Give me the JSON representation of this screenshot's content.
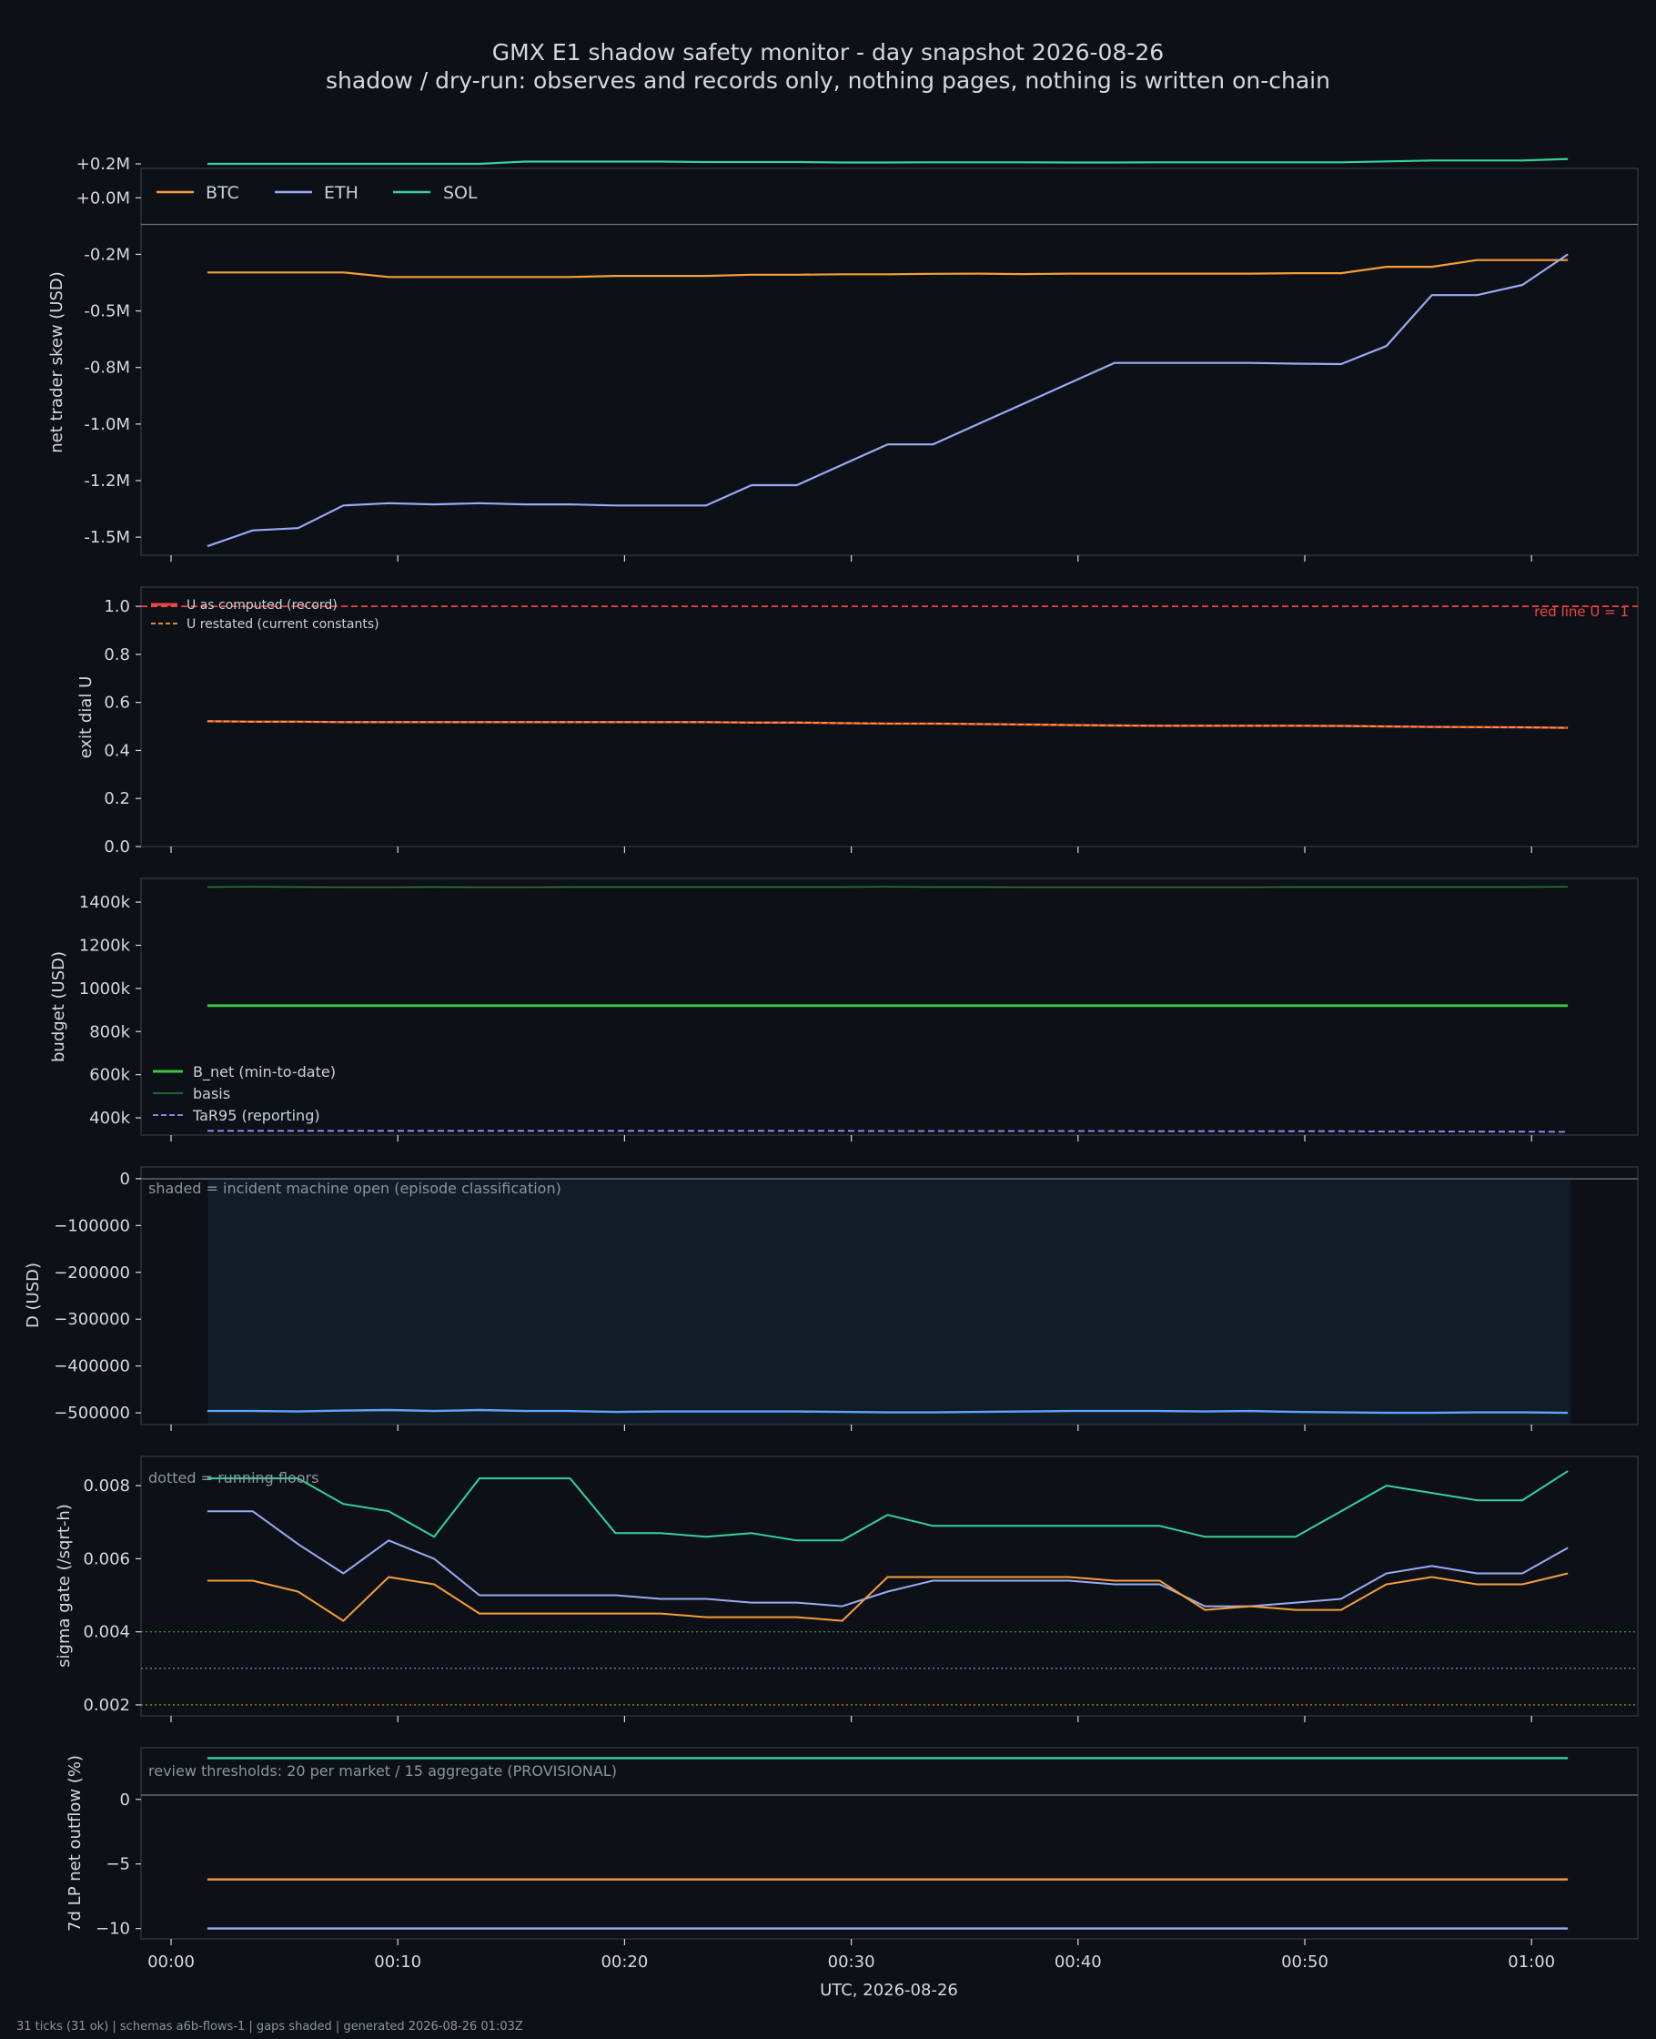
{
  "title": "GMX E1 shadow safety monitor - day snapshot 2026-08-26",
  "subtitle": "shadow / dry-run: observes and records only, nothing pages, nothing is written on-chain",
  "xlabel": "UTC, 2026-08-26",
  "x_tick_labels": [
    "00:00",
    "00:10",
    "00:20",
    "00:30",
    "00:40",
    "00:50",
    "01:00"
  ],
  "footer": "31 ticks (31 ok) | schemas a6b-flows-1 | gaps shaded | generated 2026-08-26 01:03Z",
  "colors": {
    "btc": "#f59e3b",
    "eth": "#9aaaf5",
    "sol": "#34d399",
    "red": "#ef4444",
    "green": "#3ec43e",
    "basis": "#2f7d3a",
    "tar": "#a78bfa",
    "d": "#60a5fa",
    "shade": "#111c26"
  },
  "chart_data": [
    {
      "type": "line",
      "ylabel": "net trader skew (USD)",
      "ytick_labels": [
        "+0.2M",
        "+0.0M",
        "-0.2M",
        "-0.5M",
        "-0.8M",
        "-1.0M",
        "-1.2M",
        "-1.5M"
      ],
      "ylim": [
        -1.58,
        0.13
      ],
      "legend": "top-left",
      "x_minutes": [
        1.6,
        3.6,
        5.6,
        7.6,
        9.6,
        11.6,
        13.6,
        15.6,
        17.6,
        19.6,
        21.6,
        23.6,
        25.6,
        27.6,
        29.6,
        31.6,
        33.6,
        35.6,
        37.6,
        39.6,
        41.6,
        43.6,
        45.6,
        47.6,
        49.6,
        51.6,
        53.6,
        55.6,
        57.6,
        59.6,
        61.6
      ],
      "series": [
        {
          "name": "BTC",
          "color": "#f59e3b",
          "values": [
            -0.33,
            -0.33,
            -0.33,
            -0.33,
            -0.35,
            -0.35,
            -0.35,
            -0.35,
            -0.35,
            -0.345,
            -0.345,
            -0.345,
            -0.34,
            -0.34,
            -0.338,
            -0.338,
            -0.336,
            -0.335,
            -0.337,
            -0.335,
            -0.335,
            -0.335,
            -0.335,
            -0.335,
            -0.333,
            -0.333,
            -0.305,
            -0.305,
            -0.275,
            -0.275,
            -0.275
          ]
        },
        {
          "name": "ETH",
          "color": "#9aaaf5",
          "values": [
            -1.54,
            -1.47,
            -1.46,
            -1.36,
            -1.35,
            -1.355,
            -1.35,
            -1.355,
            -1.355,
            -1.36,
            -1.36,
            -1.36,
            -1.27,
            -1.27,
            -1.18,
            -1.09,
            -1.09,
            -1.0,
            -0.91,
            -0.82,
            -0.73,
            -0.73,
            -0.73,
            -0.73,
            -0.733,
            -0.735,
            -0.655,
            -0.43,
            -0.43,
            -0.385,
            -0.25
          ]
        },
        {
          "name": "SOL",
          "color": "#34d399",
          "values": [
            0.15,
            0.15,
            0.15,
            0.15,
            0.15,
            0.15,
            0.15,
            0.16,
            0.16,
            0.16,
            0.16,
            0.158,
            0.158,
            0.158,
            0.156,
            0.156,
            0.157,
            0.157,
            0.157,
            0.156,
            0.156,
            0.157,
            0.157,
            0.157,
            0.157,
            0.157,
            0.161,
            0.165,
            0.165,
            0.165,
            0.172
          ]
        }
      ]
    },
    {
      "type": "line",
      "ylabel": "exit dial U",
      "ytick_labels": [
        "1.0",
        "0.8",
        "0.6",
        "0.4",
        "0.2",
        "0.0"
      ],
      "ylim": [
        0,
        1.08
      ],
      "legend": "top-left",
      "annotation": "red line U = 1",
      "series": [
        {
          "name": "U as computed (record)",
          "color": "#ef4444",
          "values": [
            0.522,
            0.52,
            0.52,
            0.518,
            0.518,
            0.518,
            0.518,
            0.518,
            0.518,
            0.518,
            0.518,
            0.518,
            0.516,
            0.516,
            0.514,
            0.512,
            0.512,
            0.51,
            0.508,
            0.506,
            0.504,
            0.503,
            0.503,
            0.503,
            0.503,
            0.502,
            0.5,
            0.498,
            0.497,
            0.496,
            0.494
          ]
        },
        {
          "name": "U restated (current constants)",
          "color": "#f59e3b",
          "values": [
            0.522,
            0.52,
            0.52,
            0.518,
            0.518,
            0.518,
            0.518,
            0.518,
            0.518,
            0.518,
            0.518,
            0.518,
            0.516,
            0.516,
            0.514,
            0.512,
            0.512,
            0.51,
            0.508,
            0.506,
            0.504,
            0.503,
            0.503,
            0.503,
            0.503,
            0.502,
            0.5,
            0.498,
            0.497,
            0.496,
            0.494
          ]
        }
      ]
    },
    {
      "type": "line",
      "ylabel": "budget (USD)",
      "ytick_labels": [
        "1400k",
        "1200k",
        "1000k",
        "800k",
        "600k",
        "400k"
      ],
      "ylim": [
        320000,
        1510000
      ],
      "legend": "lower-left",
      "series": [
        {
          "name": "B_net (min-to-date)",
          "color": "#3ec43e",
          "values": [
            920000,
            920000,
            920000,
            920000,
            920000,
            920000,
            920000,
            920000,
            920000,
            920000,
            920000,
            920000,
            920000,
            920000,
            920000,
            920000,
            920000,
            920000,
            920000,
            920000,
            920000,
            920000,
            920000,
            920000,
            920000,
            920000,
            920000,
            920000,
            920000,
            920000,
            920000
          ]
        },
        {
          "name": "basis",
          "color": "#2f7d3a",
          "values": [
            1470000,
            1471000,
            1470000,
            1469000,
            1469000,
            1470000,
            1469000,
            1469000,
            1470000,
            1470000,
            1470000,
            1470000,
            1470000,
            1470000,
            1470000,
            1471000,
            1470000,
            1470000,
            1469000,
            1469000,
            1469000,
            1469000,
            1469000,
            1469000,
            1470000,
            1470000,
            1470000,
            1470000,
            1470000,
            1470000,
            1471000
          ]
        },
        {
          "name": "TaR95 (reporting)",
          "color": "#a78bfa",
          "values": [
            340000,
            340000,
            340000,
            340000,
            340000,
            340000,
            340000,
            340000,
            340000,
            340000,
            340000,
            340000,
            340000,
            340000,
            340000,
            339000,
            339000,
            339000,
            339000,
            339000,
            339000,
            338000,
            338000,
            338000,
            338000,
            338000,
            337000,
            337000,
            336000,
            336000,
            335000
          ]
        }
      ]
    },
    {
      "type": "line",
      "ylabel": "D (USD)",
      "ytick_labels": [
        "0",
        "−100000",
        "−200000",
        "−300000",
        "−400000",
        "−500000"
      ],
      "ylim": [
        -525000,
        25000
      ],
      "annotation": "shaded = incident machine open (episode classification)",
      "series": [
        {
          "color": "#60a5fa",
          "values": [
            -496000,
            -496000,
            -497000,
            -495000,
            -494000,
            -496000,
            -494000,
            -496000,
            -496000,
            -498000,
            -497000,
            -497000,
            -497000,
            -497000,
            -498000,
            -499000,
            -499000,
            -498000,
            -497000,
            -496000,
            -496000,
            -496000,
            -497000,
            -496000,
            -498000,
            -499000,
            -500000,
            -500000,
            -499000,
            -499000,
            -500000
          ]
        }
      ]
    },
    {
      "type": "line",
      "ylabel": "sigma gate (/sqrt-h)",
      "ytick_labels": [
        "0.008",
        "0.006",
        "0.004",
        "0.002"
      ],
      "ylim": [
        0.0017,
        0.0088
      ],
      "annotation": "dotted = running floors",
      "floors": [
        {
          "color": "#3ec43e",
          "value": 0.004
        },
        {
          "color": "#9aaaf5",
          "value": 0.003
        },
        {
          "color": "#f59e3b",
          "value": 0.002
        }
      ],
      "series": [
        {
          "color": "#34d399",
          "values": [
            0.0082,
            0.0082,
            0.0082,
            0.0075,
            0.0073,
            0.0066,
            0.0082,
            0.0082,
            0.0082,
            0.0067,
            0.0067,
            0.0066,
            0.0067,
            0.0065,
            0.0065,
            0.0072,
            0.0069,
            0.0069,
            0.0069,
            0.0069,
            0.0069,
            0.0069,
            0.0066,
            0.0066,
            0.0066,
            0.0073,
            0.008,
            0.0078,
            0.0076,
            0.0076,
            0.0084
          ]
        },
        {
          "color": "#9aaaf5",
          "values": [
            0.0073,
            0.0073,
            0.0064,
            0.0056,
            0.0065,
            0.006,
            0.005,
            0.005,
            0.005,
            0.005,
            0.0049,
            0.0049,
            0.0048,
            0.0048,
            0.0047,
            0.0051,
            0.0054,
            0.0054,
            0.0054,
            0.0054,
            0.0053,
            0.0053,
            0.0047,
            0.0047,
            0.0048,
            0.0049,
            0.0056,
            0.0058,
            0.0056,
            0.0056,
            0.0063
          ]
        },
        {
          "color": "#f59e3b",
          "values": [
            0.0054,
            0.0054,
            0.0051,
            0.0043,
            0.0055,
            0.0053,
            0.0045,
            0.0045,
            0.0045,
            0.0045,
            0.0045,
            0.0044,
            0.0044,
            0.0044,
            0.0043,
            0.0055,
            0.0055,
            0.0055,
            0.0055,
            0.0055,
            0.0054,
            0.0054,
            0.0046,
            0.0047,
            0.0046,
            0.0046,
            0.0053,
            0.0055,
            0.0053,
            0.0053,
            0.0056
          ]
        }
      ]
    },
    {
      "type": "line",
      "ylabel": "7d LP net outflow (%)",
      "ytick_labels": [
        "0",
        "−5",
        "−10"
      ],
      "ylim": [
        -10.8,
        4.0
      ],
      "annotation": "review thresholds: 20 per market / 15 aggregate (PROVISIONAL)",
      "series": [
        {
          "color": "#34d399",
          "values": [
            3.2,
            3.2,
            3.2,
            3.2,
            3.2,
            3.2,
            3.2,
            3.2,
            3.2,
            3.2,
            3.2,
            3.2,
            3.2,
            3.2,
            3.2,
            3.2,
            3.2,
            3.2,
            3.2,
            3.2,
            3.2,
            3.2,
            3.2,
            3.2,
            3.2,
            3.2,
            3.2,
            3.2,
            3.2,
            3.2,
            3.2
          ]
        },
        {
          "color": "#f59e3b",
          "values": [
            -6.2,
            -6.2,
            -6.2,
            -6.2,
            -6.2,
            -6.2,
            -6.2,
            -6.2,
            -6.2,
            -6.2,
            -6.2,
            -6.2,
            -6.2,
            -6.2,
            -6.2,
            -6.2,
            -6.2,
            -6.2,
            -6.2,
            -6.2,
            -6.2,
            -6.2,
            -6.2,
            -6.2,
            -6.2,
            -6.2,
            -6.2,
            -6.2,
            -6.2,
            -6.2,
            -6.2
          ]
        },
        {
          "color": "#9aaaf5",
          "values": [
            -10.0,
            -10.0,
            -10.0,
            -10.0,
            -10.0,
            -10.0,
            -10.0,
            -10.0,
            -10.0,
            -10.0,
            -10.0,
            -10.0,
            -10.0,
            -10.0,
            -10.0,
            -10.0,
            -10.0,
            -10.0,
            -10.0,
            -10.0,
            -10.0,
            -10.0,
            -10.0,
            -10.0,
            -10.0,
            -10.0,
            -10.0,
            -10.0,
            -10.0,
            -10.0,
            -10.0
          ]
        }
      ]
    }
  ]
}
